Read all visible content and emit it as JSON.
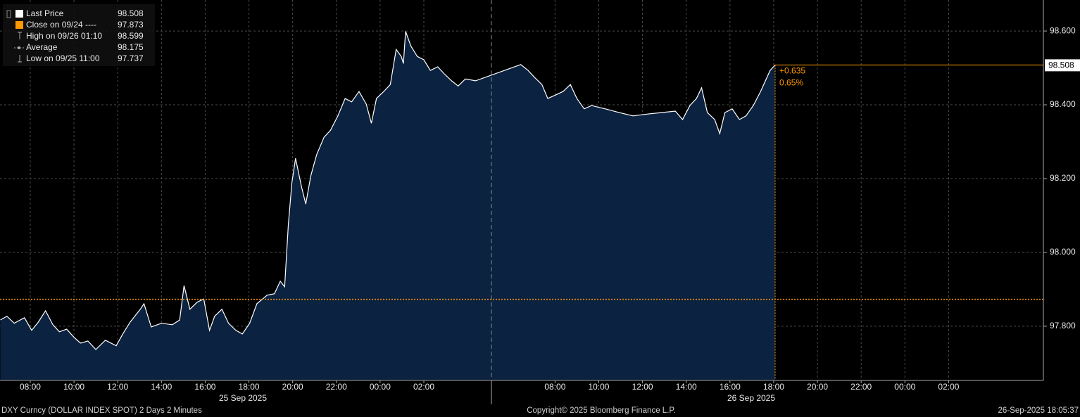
{
  "chart_data": {
    "type": "area",
    "series": [
      {
        "name": "Last Price",
        "color": "#ffffff",
        "fill": "#0b2240",
        "x": [
          "2025-09-25 06:38",
          "2025-09-25 06:56",
          "2025-09-25 07:16",
          "2025-09-25 07:44",
          "2025-09-25 08:04",
          "2025-09-25 08:22",
          "2025-09-25 08:42",
          "2025-09-25 09:02",
          "2025-09-25 09:20",
          "2025-09-25 09:40",
          "2025-09-25 10:00",
          "2025-09-25 10:18",
          "2025-09-25 10:38",
          "2025-09-25 11:00",
          "2025-09-25 11:26",
          "2025-09-25 11:56",
          "2025-09-25 12:14",
          "2025-09-25 12:34",
          "2025-09-25 13:02",
          "2025-09-25 13:12",
          "2025-09-25 13:32",
          "2025-09-25 14:00",
          "2025-09-25 14:30",
          "2025-09-25 14:50",
          "2025-09-25 15:02",
          "2025-09-25 15:18",
          "2025-09-25 15:38",
          "2025-09-25 15:56",
          "2025-09-25 16:12",
          "2025-09-25 16:26",
          "2025-09-25 16:46",
          "2025-09-25 17:04",
          "2025-09-25 17:24",
          "2025-09-25 17:42",
          "2025-09-25 18:02",
          "2025-09-25 18:22",
          "2025-09-25 18:50",
          "2025-09-25 19:10",
          "2025-09-25 19:26",
          "2025-09-25 19:38",
          "2025-09-25 19:48",
          "2025-09-25 19:58",
          "2025-09-25 20:08",
          "2025-09-25 20:24",
          "2025-09-25 20:36",
          "2025-09-25 20:50",
          "2025-09-25 21:06",
          "2025-09-25 21:26",
          "2025-09-25 21:44",
          "2025-09-25 22:04",
          "2025-09-25 22:24",
          "2025-09-25 22:42",
          "2025-09-25 23:02",
          "2025-09-25 23:22",
          "2025-09-25 23:36",
          "2025-09-25 23:50",
          "2025-09-26 00:10",
          "2025-09-26 00:28",
          "2025-09-26 00:44",
          "2025-09-26 00:58",
          "2025-09-26 01:04",
          "2025-09-26 01:10",
          "2025-09-26 01:24",
          "2025-09-26 01:42",
          "2025-09-26 02:00",
          "2025-09-26 02:18",
          "2025-09-26 02:38",
          "2025-09-26 02:56",
          "2025-09-26 03:16",
          "2025-09-26 03:34",
          "2025-09-26 03:54",
          "2025-09-26 04:22",
          "2025-09-26 06:26",
          "2025-09-26 06:46",
          "2025-09-26 07:04",
          "2025-09-26 07:24",
          "2025-09-26 07:40",
          "2025-09-26 08:02",
          "2025-09-26 08:22",
          "2025-09-26 08:42",
          "2025-09-26 09:00",
          "2025-09-26 09:20",
          "2025-09-26 09:40",
          "2025-09-26 10:18",
          "2025-09-26 10:56",
          "2025-09-26 11:34",
          "2025-09-26 12:14",
          "2025-09-26 12:52",
          "2025-09-26 13:30",
          "2025-09-26 13:50",
          "2025-09-26 14:10",
          "2025-09-26 14:28",
          "2025-09-26 14:42",
          "2025-09-26 14:58",
          "2025-09-26 15:18",
          "2025-09-26 15:32",
          "2025-09-26 15:46",
          "2025-09-26 16:06",
          "2025-09-26 16:26",
          "2025-09-26 16:44",
          "2025-09-26 17:04",
          "2025-09-26 17:24",
          "2025-09-26 17:50",
          "2025-09-26 18:04"
        ],
        "values": [
          97.817,
          97.827,
          97.808,
          97.823,
          97.789,
          97.811,
          97.842,
          97.804,
          97.785,
          97.792,
          97.77,
          97.754,
          97.76,
          97.737,
          97.762,
          97.747,
          97.779,
          97.811,
          97.846,
          97.861,
          97.798,
          97.808,
          97.804,
          97.817,
          97.91,
          97.846,
          97.865,
          97.874,
          97.789,
          97.827,
          97.846,
          97.808,
          97.789,
          97.779,
          97.808,
          97.861,
          97.884,
          97.888,
          97.922,
          97.907,
          98.074,
          98.189,
          98.255,
          98.179,
          98.131,
          98.208,
          98.265,
          98.312,
          98.331,
          98.37,
          98.417,
          98.408,
          98.436,
          98.402,
          98.35,
          98.417,
          98.436,
          98.455,
          98.55,
          98.531,
          98.512,
          98.599,
          98.56,
          98.531,
          98.522,
          98.493,
          98.503,
          98.484,
          98.465,
          98.451,
          98.47,
          98.465,
          98.509,
          98.493,
          98.474,
          98.455,
          98.417,
          98.427,
          98.436,
          98.455,
          98.417,
          98.389,
          98.398,
          98.389,
          98.379,
          98.37,
          98.375,
          98.379,
          98.383,
          98.36,
          98.398,
          98.417,
          98.446,
          98.379,
          98.36,
          98.322,
          98.379,
          98.389,
          98.36,
          98.37,
          98.398,
          98.436,
          98.493,
          98.508
        ]
      }
    ],
    "reference_line": {
      "label": "Close on 09/24 ----",
      "value": 97.873,
      "color": "#ff9900"
    },
    "stats": [
      {
        "label": "High on 09/26 01:10",
        "value": 98.599
      },
      {
        "label": "Average",
        "value": 98.175
      },
      {
        "label": "Low on 09/25 11:00",
        "value": 97.737
      }
    ],
    "change": {
      "value": 0.635,
      "label": "+0.635"
    },
    "change_pct": {
      "value": 0.65,
      "label": "0.65%"
    },
    "ylim": [
      97.655,
      98.684
    ],
    "yticks": [
      {
        "value": 98.6,
        "label": "98.600"
      },
      {
        "value": 98.4,
        "label": "98.400"
      },
      {
        "value": 98.2,
        "label": "98.200"
      },
      {
        "value": 98.0,
        "label": "98.000"
      },
      {
        "value": 97.8,
        "label": "97.800"
      }
    ],
    "xlim": [
      "2025-09-25 06:37",
      "2025-09-27 06:20"
    ],
    "xticks": [
      {
        "value": "2025-09-25 08:00",
        "label": "08:00"
      },
      {
        "value": "2025-09-25 10:00",
        "label": "10:00"
      },
      {
        "value": "2025-09-25 12:00",
        "label": "12:00"
      },
      {
        "value": "2025-09-25 14:00",
        "label": "14:00"
      },
      {
        "value": "2025-09-25 16:00",
        "label": "16:00"
      },
      {
        "value": "2025-09-25 18:00",
        "label": "18:00"
      },
      {
        "value": "2025-09-25 20:00",
        "label": "20:00"
      },
      {
        "value": "2025-09-25 22:00",
        "label": "22:00"
      },
      {
        "value": "2025-09-26 00:00",
        "label": "00:00"
      },
      {
        "value": "2025-09-26 02:00",
        "label": "02:00"
      },
      {
        "value": "2025-09-26 08:00",
        "label": "08:00"
      },
      {
        "value": "2025-09-26 10:00",
        "label": "10:00"
      },
      {
        "value": "2025-09-26 12:00",
        "label": "12:00"
      },
      {
        "value": "2025-09-26 14:00",
        "label": "14:00"
      },
      {
        "value": "2025-09-26 16:00",
        "label": "16:00"
      },
      {
        "value": "2025-09-26 18:00",
        "label": "18:00"
      },
      {
        "value": "2025-09-26 20:00",
        "label": "20:00"
      },
      {
        "value": "2025-09-26 22:00",
        "label": "22:00"
      },
      {
        "value": "2025-09-27 00:00",
        "label": "00:00"
      },
      {
        "value": "2025-09-27 02:00",
        "label": "02:00"
      }
    ],
    "day_labels": [
      "25 Sep 2025",
      "26 Sep 2025"
    ],
    "grid": true,
    "footer": {
      "security": "DXY Curncy (DOLLAR INDEX SPOT) 2 Days 2 Minutes",
      "copyright": "Copyright© 2025 Bloomberg Finance L.P.",
      "timestamp": "26-Sep-2025 18:05:37"
    }
  }
}
